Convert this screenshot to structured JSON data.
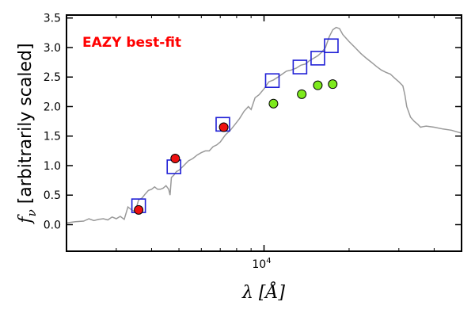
{
  "chart_data": {
    "type": "scatter",
    "title": "",
    "xlabel": "λ [Å]",
    "ylabel_prefix": "f",
    "ylabel_sub": "ν",
    "ylabel_text": " [arbitrarily scaled]",
    "x_scale": "log",
    "xlim": [
      2000,
      50000
    ],
    "ylim": [
      -0.45,
      3.55
    ],
    "yticks": [
      0.0,
      0.5,
      1.0,
      1.5,
      2.0,
      2.5,
      3.0,
      3.5
    ],
    "ytick_labels": [
      "0.0",
      "0.5",
      "1.0",
      "1.5",
      "2.0",
      "2.5",
      "3.0",
      "3.5"
    ],
    "xtick_major": [
      {
        "value": 10000,
        "base": "10",
        "exp": "4"
      }
    ],
    "xtick_minor": [
      3000,
      4000,
      5000,
      6000,
      7000,
      8000,
      9000,
      20000,
      30000,
      40000
    ],
    "grid": false,
    "annotation": {
      "text": "EAZY best-fit",
      "color": "#ff0000"
    },
    "series": [
      {
        "kind": "line",
        "color": "#999999",
        "points": [
          [
            2000,
            0.03
          ],
          [
            2150,
            0.05
          ],
          [
            2300,
            0.06
          ],
          [
            2400,
            0.1
          ],
          [
            2500,
            0.07
          ],
          [
            2600,
            0.09
          ],
          [
            2700,
            0.1
          ],
          [
            2800,
            0.08
          ],
          [
            2900,
            0.13
          ],
          [
            3000,
            0.1
          ],
          [
            3100,
            0.14
          ],
          [
            3200,
            0.09
          ],
          [
            3300,
            0.3
          ],
          [
            3400,
            0.25
          ],
          [
            3500,
            0.22
          ],
          [
            3600,
            0.42
          ],
          [
            3700,
            0.45
          ],
          [
            3800,
            0.52
          ],
          [
            3900,
            0.58
          ],
          [
            4000,
            0.6
          ],
          [
            4100,
            0.64
          ],
          [
            4200,
            0.6
          ],
          [
            4300,
            0.6
          ],
          [
            4400,
            0.62
          ],
          [
            4500,
            0.66
          ],
          [
            4600,
            0.6
          ],
          [
            4650,
            0.5
          ],
          [
            4700,
            0.8
          ],
          [
            4800,
            0.84
          ],
          [
            4900,
            0.9
          ],
          [
            5000,
            0.92
          ],
          [
            5200,
            1.0
          ],
          [
            5400,
            1.08
          ],
          [
            5600,
            1.12
          ],
          [
            5800,
            1.18
          ],
          [
            6000,
            1.22
          ],
          [
            6200,
            1.25
          ],
          [
            6400,
            1.25
          ],
          [
            6600,
            1.32
          ],
          [
            6800,
            1.35
          ],
          [
            7000,
            1.4
          ],
          [
            7300,
            1.52
          ],
          [
            7600,
            1.6
          ],
          [
            7900,
            1.7
          ],
          [
            8200,
            1.8
          ],
          [
            8500,
            1.92
          ],
          [
            8800,
            2.0
          ],
          [
            9000,
            1.95
          ],
          [
            9300,
            2.15
          ],
          [
            9600,
            2.2
          ],
          [
            10000,
            2.3
          ],
          [
            10400,
            2.42
          ],
          [
            10800,
            2.45
          ],
          [
            11200,
            2.5
          ],
          [
            11600,
            2.55
          ],
          [
            12000,
            2.6
          ],
          [
            12500,
            2.62
          ],
          [
            13000,
            2.65
          ],
          [
            13500,
            2.7
          ],
          [
            14000,
            2.72
          ],
          [
            14500,
            2.78
          ],
          [
            15000,
            2.82
          ],
          [
            15500,
            2.86
          ],
          [
            16000,
            2.92
          ],
          [
            16500,
            3.0
          ],
          [
            17000,
            3.18
          ],
          [
            17500,
            3.3
          ],
          [
            18000,
            3.34
          ],
          [
            18500,
            3.32
          ],
          [
            19000,
            3.22
          ],
          [
            20000,
            3.1
          ],
          [
            21000,
            3.0
          ],
          [
            22000,
            2.9
          ],
          [
            23000,
            2.82
          ],
          [
            24000,
            2.75
          ],
          [
            25000,
            2.68
          ],
          [
            26000,
            2.62
          ],
          [
            27000,
            2.58
          ],
          [
            28000,
            2.55
          ],
          [
            29000,
            2.48
          ],
          [
            30000,
            2.42
          ],
          [
            31000,
            2.35
          ],
          [
            31500,
            2.2
          ],
          [
            32000,
            2.0
          ],
          [
            33000,
            1.82
          ],
          [
            34000,
            1.75
          ],
          [
            35000,
            1.7
          ],
          [
            35800,
            1.65
          ],
          [
            36500,
            1.66
          ],
          [
            37500,
            1.67
          ],
          [
            40000,
            1.65
          ],
          [
            43000,
            1.62
          ],
          [
            46000,
            1.6
          ],
          [
            50000,
            1.55
          ]
        ]
      },
      {
        "kind": "scatter",
        "marker": "square",
        "edgecolor": "#1f1fd6",
        "facecolor": "none",
        "x": [
          3600,
          4800,
          7150,
          10700,
          13400,
          15500,
          17300
        ],
        "y": [
          0.32,
          0.98,
          1.7,
          2.44,
          2.67,
          2.82,
          3.03
        ]
      },
      {
        "kind": "scatter",
        "marker": "circle",
        "facecolor": "#ee1111",
        "edgecolor": "#000000",
        "x": [
          3600,
          4850,
          7200
        ],
        "y": [
          0.25,
          1.12,
          1.65
        ]
      },
      {
        "kind": "scatter",
        "marker": "circle",
        "facecolor": "#7dea1c",
        "edgecolor": "#000000",
        "x": [
          10800,
          13600,
          15500,
          17500
        ],
        "y": [
          2.05,
          2.21,
          2.36,
          2.38
        ]
      }
    ]
  }
}
